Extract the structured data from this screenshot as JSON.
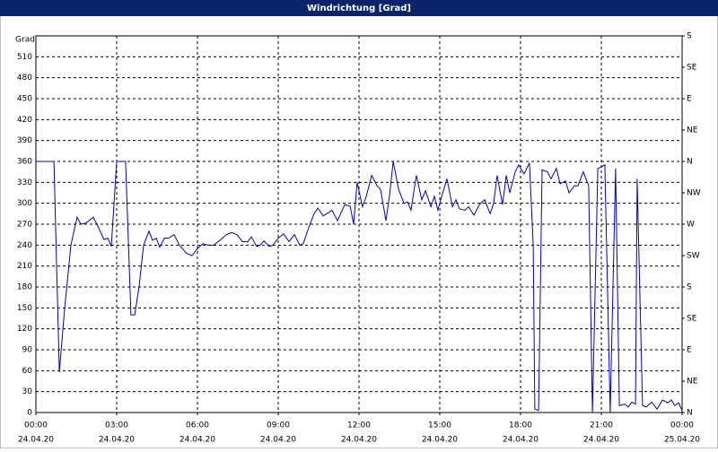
{
  "chart_data": {
    "type": "line",
    "title": "Windrichtung [Grad]",
    "y_label": "Grad",
    "color": "#0000cc",
    "grid": true,
    "xlim": [
      0,
      24
    ],
    "ylim": [
      0,
      540
    ],
    "y2lim": [
      0,
      540
    ],
    "xticks": [
      {
        "value": 0,
        "label": "00:00"
      },
      {
        "value": 3,
        "label": "03:00"
      },
      {
        "value": 6,
        "label": "06:00"
      },
      {
        "value": 9,
        "label": "09:00"
      },
      {
        "value": 12,
        "label": "12:00"
      },
      {
        "value": 15,
        "label": "15:00"
      },
      {
        "value": 18,
        "label": "18:00"
      },
      {
        "value": 21,
        "label": "21:00"
      },
      {
        "value": 24,
        "label": "00:00"
      }
    ],
    "xtick_dates": [
      "24.04.20",
      "24.04.20",
      "24.04.20",
      "24.04.20",
      "24.04.20",
      "24.04.20",
      "24.04.20",
      "24.04.20",
      "25.04.20"
    ],
    "yticks": [
      0,
      30,
      60,
      90,
      120,
      150,
      180,
      210,
      240,
      270,
      300,
      330,
      360,
      390,
      420,
      450,
      480,
      510
    ],
    "y2ticks": [
      {
        "value": 0,
        "label": "N"
      },
      {
        "value": 45,
        "label": "NE"
      },
      {
        "value": 90,
        "label": "E"
      },
      {
        "value": 135,
        "label": "SE"
      },
      {
        "value": 180,
        "label": "S"
      },
      {
        "value": 225,
        "label": "SW"
      },
      {
        "value": 270,
        "label": "W"
      },
      {
        "value": 315,
        "label": "NW"
      },
      {
        "value": 360,
        "label": "N"
      },
      {
        "value": 405,
        "label": "NE"
      },
      {
        "value": 450,
        "label": "E"
      },
      {
        "value": 495,
        "label": "SE"
      },
      {
        "value": 540,
        "label": "S"
      }
    ],
    "x": [
      0,
      0.67,
      0.87,
      1.07,
      1.3,
      1.47,
      1.53,
      1.67,
      1.87,
      2.13,
      2.33,
      2.53,
      2.67,
      2.8,
      3,
      3.33,
      3.53,
      3.67,
      3.83,
      4,
      4.2,
      4.33,
      4.47,
      4.6,
      4.77,
      4.93,
      5.13,
      5.33,
      5.6,
      5.8,
      6,
      6.2,
      6.4,
      6.6,
      6.87,
      7.07,
      7.27,
      7.47,
      7.67,
      7.87,
      8,
      8.2,
      8.33,
      8.47,
      8.67,
      8.8,
      9,
      9.2,
      9.4,
      9.6,
      9.8,
      9.93,
      10.13,
      10.33,
      10.47,
      10.67,
      10.8,
      11,
      11.2,
      11.47,
      11.67,
      11.8,
      11.93,
      12.13,
      12.27,
      12.47,
      12.67,
      12.8,
      13,
      13.13,
      13.27,
      13.47,
      13.67,
      13.8,
      13.93,
      14.13,
      14.33,
      14.47,
      14.67,
      14.8,
      14.93,
      15.07,
      15.27,
      15.47,
      15.6,
      15.73,
      15.93,
      16.07,
      16.27,
      16.47,
      16.67,
      16.87,
      17,
      17.13,
      17.33,
      17.47,
      17.6,
      17.8,
      17.93,
      18.13,
      18.33,
      18.47,
      18.53,
      18.67,
      18.8,
      19,
      19.13,
      19.33,
      19.47,
      19.67,
      19.8,
      20,
      20.13,
      20.33,
      20.53,
      20.67,
      20.87,
      21,
      21.13,
      21.33,
      21.53,
      21.67,
      21.87,
      22,
      22.13,
      22.27,
      22.33,
      22.53,
      22.67,
      22.87,
      23.07,
      23.27,
      23.47,
      23.6,
      23.73,
      23.87,
      24
    ],
    "values": [
      360,
      360,
      58,
      150,
      240,
      270,
      280,
      270,
      272,
      280,
      265,
      248,
      250,
      238,
      360,
      360,
      140,
      140,
      180,
      240,
      260,
      247,
      250,
      237,
      250,
      250,
      255,
      240,
      228,
      225,
      235,
      242,
      240,
      240,
      248,
      255,
      258,
      255,
      245,
      245,
      252,
      238,
      240,
      246,
      238,
      240,
      250,
      256,
      245,
      255,
      240,
      242,
      265,
      285,
      293,
      282,
      285,
      290,
      275,
      298,
      296,
      270,
      330,
      295,
      310,
      340,
      325,
      320,
      275,
      310,
      360,
      320,
      300,
      302,
      290,
      340,
      305,
      318,
      295,
      310,
      290,
      310,
      335,
      295,
      305,
      292,
      290,
      295,
      283,
      298,
      305,
      285,
      300,
      340,
      298,
      340,
      315,
      345,
      355,
      342,
      358,
      240,
      5,
      3,
      348,
      345,
      335,
      350,
      328,
      332,
      315,
      325,
      325,
      345,
      325,
      0,
      350,
      352,
      355,
      0,
      350,
      10,
      12,
      8,
      15,
      12,
      335,
      10,
      8,
      15,
      5,
      18,
      14,
      18,
      10,
      14,
      3
    ]
  }
}
